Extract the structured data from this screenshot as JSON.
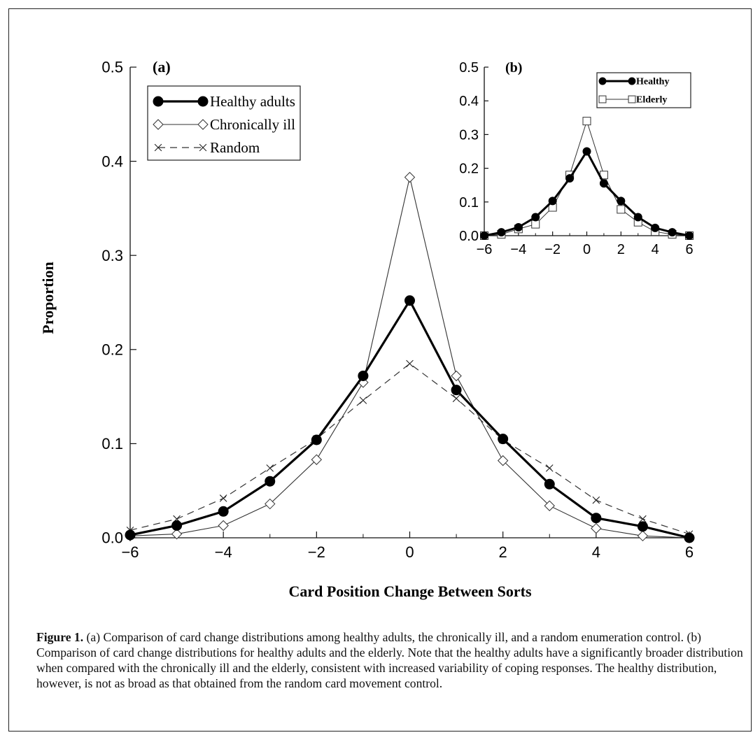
{
  "figure": {
    "caption_label": "Figure 1.",
    "caption_text": "(a) Comparison of card change distributions among healthy adults, the chronically ill, and a random enumeration control. (b) Comparison of card change distributions for healthy adults and the elderly. Note that the healthy adults have a significantly broader distribution when compared with the chronically ill and the elderly, consistent with increased variability of coping responses. The healthy distribution, however, is not as broad as that obtained from the random card movement control."
  },
  "chart_data": [
    {
      "panel": "(a)",
      "type": "line",
      "xlabel": "Card Position Change Between Sorts",
      "ylabel": "Proportion",
      "xlim": [
        -6,
        6
      ],
      "ylim": [
        0,
        0.5
      ],
      "xticks": [
        "−6",
        "−4",
        "−2",
        "0",
        "2",
        "4",
        "6"
      ],
      "yticks": [
        "0.0",
        "0.1",
        "0.2",
        "0.3",
        "0.4",
        "0.5"
      ],
      "legend_position": "top-left",
      "x": [
        -6,
        -5,
        -4,
        -3,
        -2,
        -1,
        0,
        1,
        2,
        3,
        4,
        5,
        6
      ],
      "series": [
        {
          "name": "Healthy adults",
          "marker": "filled-circle",
          "line": "thick-solid",
          "values": [
            0.003,
            0.013,
            0.028,
            0.06,
            0.104,
            0.172,
            0.252,
            0.157,
            0.105,
            0.057,
            0.021,
            0.012,
            0.0
          ]
        },
        {
          "name": "Chronically ill",
          "marker": "open-diamond",
          "line": "thin-solid",
          "values": [
            0.002,
            0.004,
            0.013,
            0.036,
            0.083,
            0.165,
            0.383,
            0.172,
            0.082,
            0.034,
            0.01,
            0.002,
            0.0
          ]
        },
        {
          "name": "Random",
          "marker": "x",
          "line": "dashed",
          "values": [
            0.008,
            0.02,
            0.042,
            0.074,
            0.105,
            0.146,
            0.185,
            0.148,
            0.104,
            0.074,
            0.04,
            0.02,
            0.004
          ]
        }
      ]
    },
    {
      "panel": "(b)",
      "type": "line",
      "xlabel": "",
      "ylabel": "",
      "xlim": [
        -6,
        6
      ],
      "ylim": [
        0,
        0.5
      ],
      "xticks": [
        "−6",
        "−4",
        "−2",
        "0",
        "2",
        "4",
        "6"
      ],
      "yticks": [
        "0.0",
        "0.1",
        "0.2",
        "0.3",
        "0.4",
        "0.5"
      ],
      "legend_position": "top-right",
      "x": [
        -6,
        -5,
        -4,
        -3,
        -2,
        -1,
        0,
        1,
        2,
        3,
        4,
        5,
        6
      ],
      "series": [
        {
          "name": "Healthy",
          "marker": "filled-circle",
          "line": "thick-solid",
          "values": [
            0.0,
            0.01,
            0.025,
            0.055,
            0.103,
            0.17,
            0.25,
            0.155,
            0.103,
            0.055,
            0.023,
            0.01,
            0.0
          ]
        },
        {
          "name": "Elderly",
          "marker": "open-square",
          "line": "thin-solid",
          "values": [
            0.0,
            0.004,
            0.02,
            0.034,
            0.084,
            0.18,
            0.34,
            0.18,
            0.078,
            0.04,
            0.012,
            0.004,
            0.0
          ]
        }
      ]
    }
  ]
}
